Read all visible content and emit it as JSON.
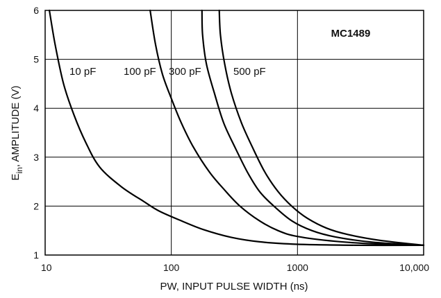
{
  "chart_data": {
    "type": "line",
    "title": "MC1489",
    "xlabel": "PW, INPUT PULSE WIDTH (ns)",
    "ylabel": {
      "main": "E",
      "sub": "in",
      "rest": ", AMPLITUDE (V)"
    },
    "xscale": "log",
    "xlim": [
      10,
      10000
    ],
    "ylim": [
      1,
      6
    ],
    "grid": true,
    "x_ticks": [
      {
        "value": 10,
        "label": "10"
      },
      {
        "value": 100,
        "label": "100"
      },
      {
        "value": 1000,
        "label": "1000"
      },
      {
        "value": 10000,
        "label": "10,000"
      }
    ],
    "y_ticks": [
      {
        "value": 1,
        "label": "1"
      },
      {
        "value": 2,
        "label": "2"
      },
      {
        "value": 3,
        "label": "3"
      },
      {
        "value": 4,
        "label": "4"
      },
      {
        "value": 5,
        "label": "5"
      },
      {
        "value": 6,
        "label": "6"
      }
    ],
    "series": [
      {
        "name": "10 pF",
        "points": [
          [
            10.8,
            6.0
          ],
          [
            12,
            5.3
          ],
          [
            14,
            4.5
          ],
          [
            17,
            3.85
          ],
          [
            21,
            3.3
          ],
          [
            27,
            2.8
          ],
          [
            40,
            2.4
          ],
          [
            60,
            2.1
          ],
          [
            80,
            1.9
          ],
          [
            120,
            1.7
          ],
          [
            180,
            1.52
          ],
          [
            300,
            1.36
          ],
          [
            500,
            1.27
          ],
          [
            1000,
            1.22
          ],
          [
            3000,
            1.2
          ],
          [
            10000,
            1.2
          ]
        ]
      },
      {
        "name": "100 pF",
        "points": [
          [
            68,
            6.0
          ],
          [
            75,
            5.3
          ],
          [
            85,
            4.7
          ],
          [
            100,
            4.2
          ],
          [
            120,
            3.7
          ],
          [
            150,
            3.2
          ],
          [
            200,
            2.7
          ],
          [
            260,
            2.35
          ],
          [
            350,
            2.0
          ],
          [
            500,
            1.7
          ],
          [
            700,
            1.5
          ],
          [
            1000,
            1.38
          ],
          [
            2000,
            1.28
          ],
          [
            4000,
            1.23
          ],
          [
            10000,
            1.2
          ]
        ]
      },
      {
        "name": "300 pF",
        "points": [
          [
            175,
            6.0
          ],
          [
            177,
            5.5
          ],
          [
            190,
            4.9
          ],
          [
            220,
            4.3
          ],
          [
            260,
            3.7
          ],
          [
            320,
            3.2
          ],
          [
            400,
            2.7
          ],
          [
            500,
            2.3
          ],
          [
            650,
            2.0
          ],
          [
            900,
            1.7
          ],
          [
            1300,
            1.5
          ],
          [
            2000,
            1.37
          ],
          [
            4000,
            1.26
          ],
          [
            10000,
            1.2
          ]
        ]
      },
      {
        "name": "500 pF",
        "points": [
          [
            240,
            6.0
          ],
          [
            245,
            5.5
          ],
          [
            265,
            4.9
          ],
          [
            300,
            4.3
          ],
          [
            360,
            3.7
          ],
          [
            440,
            3.2
          ],
          [
            550,
            2.7
          ],
          [
            700,
            2.3
          ],
          [
            900,
            2.0
          ],
          [
            1200,
            1.75
          ],
          [
            1700,
            1.55
          ],
          [
            2500,
            1.42
          ],
          [
            4500,
            1.3
          ],
          [
            10000,
            1.2
          ]
        ]
      }
    ]
  }
}
